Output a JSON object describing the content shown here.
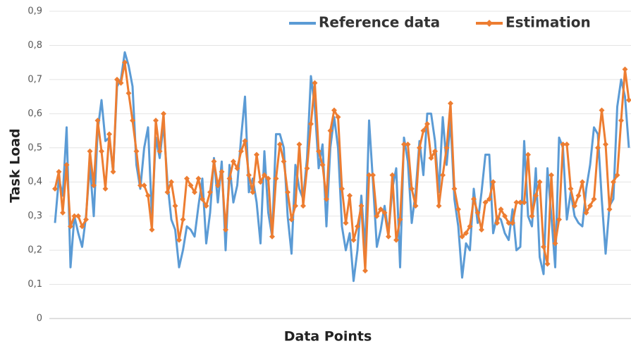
{
  "chart_data": {
    "type": "line",
    "x_label": "Data Points",
    "y_label": "Task Load",
    "ylim": [
      0,
      0.9
    ],
    "yticks": [
      0,
      {
        "value": 0.1,
        "label": "0,1"
      },
      {
        "value": 0.2,
        "label": "0,2"
      },
      {
        "value": 0.3,
        "label": "0,3"
      },
      {
        "value": 0.4,
        "label": "0,4"
      },
      {
        "value": 0.5,
        "label": "0,5"
      },
      {
        "value": 0.6,
        "label": "0,6"
      },
      {
        "value": 0.7,
        "label": "0,7"
      },
      {
        "value": 0.8,
        "label": "0,8"
      },
      {
        "value": 0.9,
        "label": "0,9"
      }
    ],
    "grid": true,
    "legend": "top",
    "series": [
      {
        "name": "Reference data",
        "color": "#5b9bd5",
        "marker": false,
        "values": [
          0.28,
          0.41,
          0.36,
          0.56,
          0.15,
          0.3,
          0.25,
          0.21,
          0.3,
          0.45,
          0.3,
          0.55,
          0.64,
          0.52,
          0.53,
          0.43,
          0.68,
          0.7,
          0.78,
          0.74,
          0.68,
          0.45,
          0.38,
          0.5,
          0.56,
          0.3,
          0.53,
          0.47,
          0.57,
          0.4,
          0.29,
          0.26,
          0.15,
          0.2,
          0.27,
          0.26,
          0.24,
          0.33,
          0.41,
          0.22,
          0.31,
          0.47,
          0.34,
          0.46,
          0.2,
          0.45,
          0.34,
          0.39,
          0.53,
          0.65,
          0.37,
          0.41,
          0.34,
          0.22,
          0.49,
          0.31,
          0.24,
          0.54,
          0.54,
          0.5,
          0.3,
          0.19,
          0.45,
          0.38,
          0.35,
          0.47,
          0.71,
          0.62,
          0.44,
          0.51,
          0.27,
          0.5,
          0.59,
          0.5,
          0.27,
          0.2,
          0.25,
          0.11,
          0.2,
          0.36,
          0.2,
          0.58,
          0.4,
          0.21,
          0.26,
          0.33,
          0.25,
          0.38,
          0.44,
          0.15,
          0.53,
          0.46,
          0.28,
          0.37,
          0.52,
          0.42,
          0.6,
          0.6,
          0.52,
          0.37,
          0.59,
          0.45,
          0.58,
          0.35,
          0.27,
          0.12,
          0.22,
          0.2,
          0.38,
          0.28,
          0.37,
          0.48,
          0.48,
          0.25,
          0.3,
          0.29,
          0.25,
          0.23,
          0.32,
          0.2,
          0.21,
          0.52,
          0.3,
          0.27,
          0.44,
          0.18,
          0.13,
          0.44,
          0.3,
          0.15,
          0.53,
          0.5,
          0.29,
          0.37,
          0.3,
          0.28,
          0.27,
          0.38,
          0.45,
          0.56,
          0.54,
          0.35,
          0.19,
          0.33,
          0.35,
          0.62,
          0.7,
          0.65,
          0.5
        ]
      },
      {
        "name": "Estimation",
        "color": "#ed7d31",
        "marker": true,
        "values": [
          0.38,
          0.43,
          0.31,
          0.45,
          0.27,
          0.3,
          0.3,
          0.27,
          0.29,
          0.49,
          0.39,
          0.58,
          0.49,
          0.38,
          0.54,
          0.43,
          0.7,
          0.69,
          0.75,
          0.66,
          0.58,
          0.49,
          0.39,
          0.39,
          0.36,
          0.26,
          0.58,
          0.49,
          0.6,
          0.37,
          0.4,
          0.33,
          0.23,
          0.29,
          0.41,
          0.39,
          0.37,
          0.41,
          0.35,
          0.33,
          0.37,
          0.46,
          0.39,
          0.43,
          0.26,
          0.41,
          0.46,
          0.44,
          0.49,
          0.52,
          0.42,
          0.37,
          0.48,
          0.4,
          0.42,
          0.41,
          0.24,
          0.41,
          0.51,
          0.46,
          0.37,
          0.29,
          0.33,
          0.51,
          0.33,
          0.44,
          0.57,
          0.69,
          0.49,
          0.45,
          0.35,
          0.55,
          0.61,
          0.59,
          0.38,
          0.28,
          0.36,
          0.23,
          0.27,
          0.33,
          0.14,
          0.42,
          0.42,
          0.3,
          0.32,
          0.31,
          0.24,
          0.42,
          0.23,
          0.29,
          0.51,
          0.51,
          0.38,
          0.33,
          0.5,
          0.55,
          0.57,
          0.47,
          0.49,
          0.33,
          0.42,
          0.5,
          0.63,
          0.38,
          0.32,
          0.24,
          0.25,
          0.27,
          0.35,
          0.31,
          0.26,
          0.34,
          0.35,
          0.4,
          0.28,
          0.32,
          0.3,
          0.28,
          0.28,
          0.34,
          0.34,
          0.34,
          0.48,
          0.3,
          0.36,
          0.4,
          0.21,
          0.16,
          0.42,
          0.22,
          0.29,
          0.51,
          0.51,
          0.38,
          0.33,
          0.36,
          0.4,
          0.31,
          0.33,
          0.35,
          0.5,
          0.61,
          0.51,
          0.32,
          0.4,
          0.42,
          0.58,
          0.73,
          0.64
        ]
      }
    ]
  }
}
